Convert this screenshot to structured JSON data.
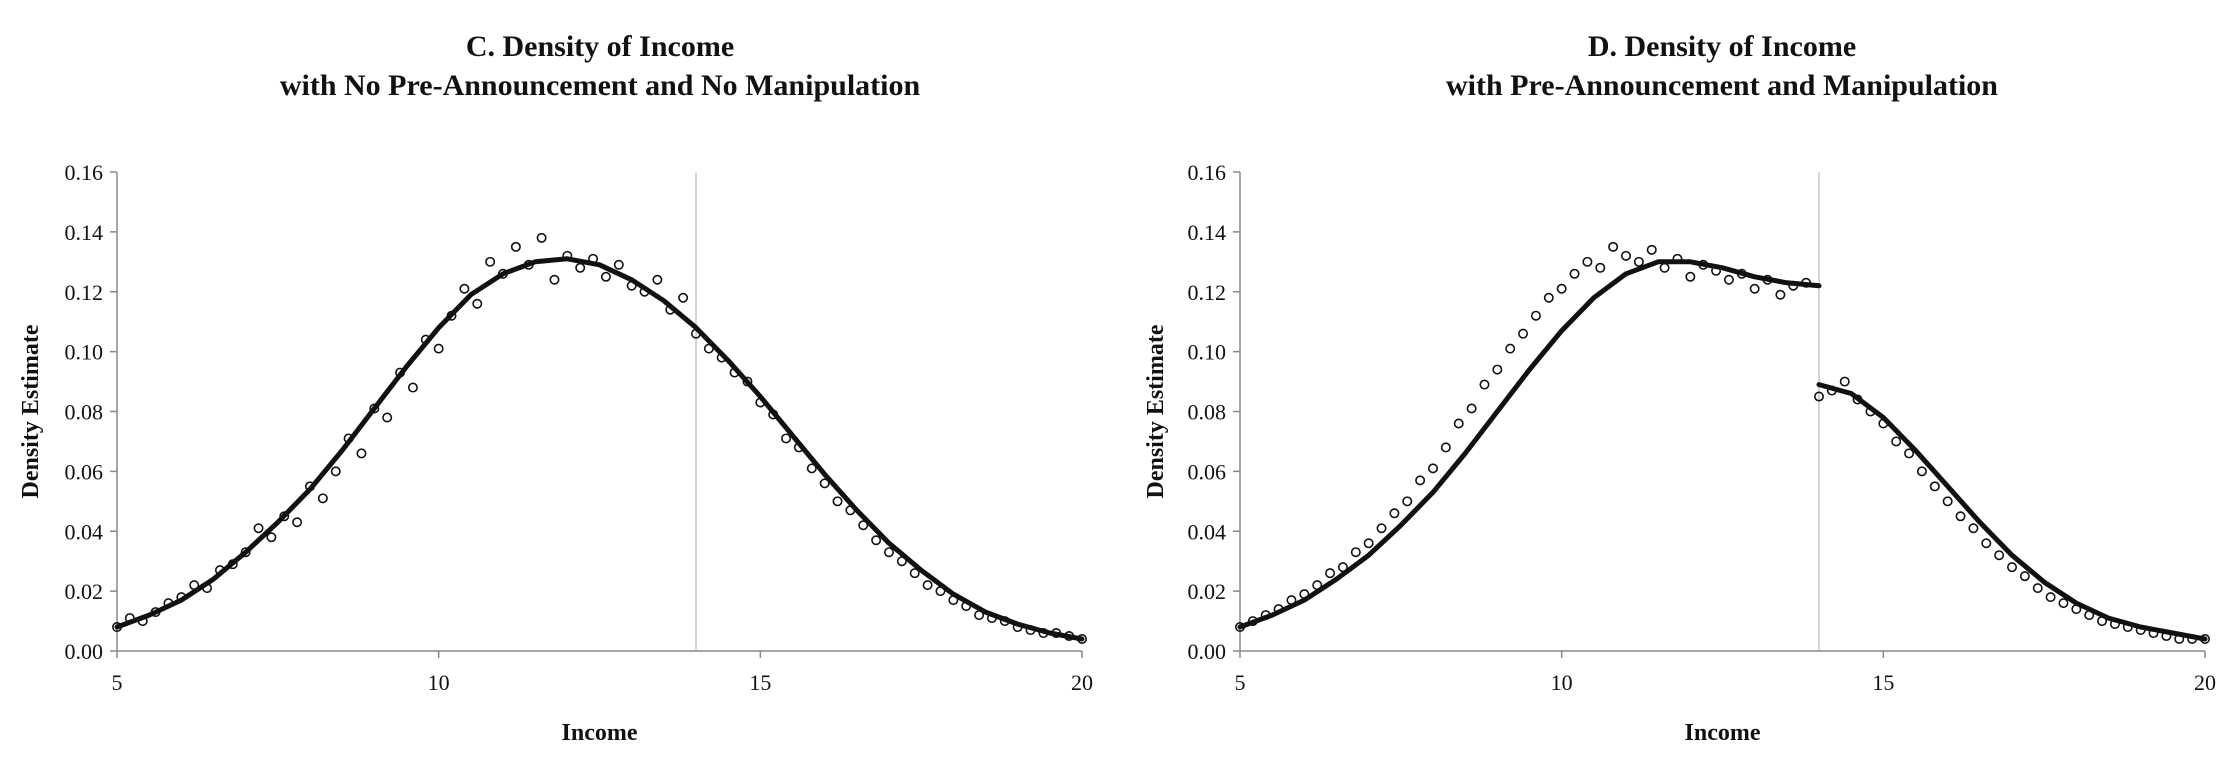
{
  "chart_data": [
    {
      "type": "scatter",
      "title_line1": "C. Density of Income",
      "title_line2": "with No Pre-Announcement and No Manipulation",
      "xlabel": "Income",
      "ylabel": "Density Estimate",
      "xlim": [
        5,
        20
      ],
      "ylim": [
        0,
        0.16
      ],
      "xticks": [
        5,
        10,
        15,
        20
      ],
      "xtick_labels": [
        "5",
        "10",
        "15",
        "20"
      ],
      "yticks": [
        0,
        0.02,
        0.04,
        0.06,
        0.08,
        0.1,
        0.12,
        0.14,
        0.16
      ],
      "ytick_labels": [
        "0.00",
        "0.02",
        "0.04",
        "0.06",
        "0.08",
        "0.10",
        "0.12",
        "0.14",
        "0.16"
      ],
      "cutoff": 14,
      "grid": false,
      "series": [
        {
          "kind": "points",
          "x": [
            5.0,
            5.2,
            5.4,
            5.6,
            5.8,
            6.0,
            6.2,
            6.4,
            6.6,
            6.8,
            7.0,
            7.2,
            7.4,
            7.6,
            7.8,
            8.0,
            8.2,
            8.4,
            8.6,
            8.8,
            9.0,
            9.2,
            9.4,
            9.6,
            9.8,
            10.0,
            10.2,
            10.4,
            10.6,
            10.8,
            11.0,
            11.2,
            11.4,
            11.6,
            11.8,
            12.0,
            12.2,
            12.4,
            12.6,
            12.8,
            13.0,
            13.2,
            13.4,
            13.6,
            13.8,
            14.0,
            14.2,
            14.4,
            14.6,
            14.8,
            15.0,
            15.2,
            15.4,
            15.6,
            15.8,
            16.0,
            16.2,
            16.4,
            16.6,
            16.8,
            17.0,
            17.2,
            17.4,
            17.6,
            17.8,
            18.0,
            18.2,
            18.4,
            18.6,
            18.8,
            19.0,
            19.2,
            19.4,
            19.6,
            19.8,
            20.0
          ],
          "y": [
            0.008,
            0.011,
            0.01,
            0.013,
            0.016,
            0.018,
            0.022,
            0.021,
            0.027,
            0.029,
            0.033,
            0.041,
            0.038,
            0.045,
            0.043,
            0.055,
            0.051,
            0.06,
            0.071,
            0.066,
            0.081,
            0.078,
            0.093,
            0.088,
            0.104,
            0.101,
            0.112,
            0.121,
            0.116,
            0.13,
            0.126,
            0.135,
            0.129,
            0.138,
            0.124,
            0.132,
            0.128,
            0.131,
            0.125,
            0.129,
            0.122,
            0.12,
            0.124,
            0.114,
            0.118,
            0.106,
            0.101,
            0.098,
            0.093,
            0.09,
            0.083,
            0.079,
            0.071,
            0.068,
            0.061,
            0.056,
            0.05,
            0.047,
            0.042,
            0.037,
            0.033,
            0.03,
            0.026,
            0.022,
            0.02,
            0.017,
            0.015,
            0.012,
            0.011,
            0.01,
            0.008,
            0.007,
            0.006,
            0.006,
            0.005,
            0.004
          ]
        },
        {
          "kind": "fit",
          "x": [
            5.0,
            5.5,
            6.0,
            6.5,
            7.0,
            7.5,
            8.0,
            8.5,
            9.0,
            9.5,
            10.0,
            10.5,
            11.0,
            11.5,
            12.0,
            12.5,
            13.0,
            13.5,
            14.0,
            14.5,
            15.0,
            15.5,
            16.0,
            16.5,
            17.0,
            17.5,
            18.0,
            18.5,
            19.0,
            19.5,
            20.0
          ],
          "y": [
            0.008,
            0.012,
            0.017,
            0.024,
            0.033,
            0.043,
            0.054,
            0.067,
            0.081,
            0.095,
            0.108,
            0.119,
            0.126,
            0.13,
            0.131,
            0.129,
            0.124,
            0.117,
            0.108,
            0.097,
            0.085,
            0.072,
            0.059,
            0.047,
            0.036,
            0.027,
            0.019,
            0.013,
            0.009,
            0.006,
            0.004
          ]
        }
      ]
    },
    {
      "type": "scatter",
      "title_line1": "D. Density of Income",
      "title_line2": "with Pre-Announcement and Manipulation",
      "xlabel": "Income",
      "ylabel": "Density Estimate",
      "xlim": [
        5,
        20
      ],
      "ylim": [
        0,
        0.16
      ],
      "xticks": [
        5,
        10,
        15,
        20
      ],
      "xtick_labels": [
        "5",
        "10",
        "15",
        "20"
      ],
      "yticks": [
        0,
        0.02,
        0.04,
        0.06,
        0.08,
        0.1,
        0.12,
        0.14,
        0.16
      ],
      "ytick_labels": [
        "0.00",
        "0.02",
        "0.04",
        "0.06",
        "0.08",
        "0.10",
        "0.12",
        "0.14",
        "0.16"
      ],
      "cutoff": 14,
      "grid": false,
      "series": [
        {
          "kind": "points",
          "x": [
            5.0,
            5.2,
            5.4,
            5.6,
            5.8,
            6.0,
            6.2,
            6.4,
            6.6,
            6.8,
            7.0,
            7.2,
            7.4,
            7.6,
            7.8,
            8.0,
            8.2,
            8.4,
            8.6,
            8.8,
            9.0,
            9.2,
            9.4,
            9.6,
            9.8,
            10.0,
            10.2,
            10.4,
            10.6,
            10.8,
            11.0,
            11.2,
            11.4,
            11.6,
            11.8,
            12.0,
            12.2,
            12.4,
            12.6,
            12.8,
            13.0,
            13.2,
            13.4,
            13.6,
            13.8,
            14.0,
            14.2,
            14.4,
            14.6,
            14.8,
            15.0,
            15.2,
            15.4,
            15.6,
            15.8,
            16.0,
            16.2,
            16.4,
            16.6,
            16.8,
            17.0,
            17.2,
            17.4,
            17.6,
            17.8,
            18.0,
            18.2,
            18.4,
            18.6,
            18.8,
            19.0,
            19.2,
            19.4,
            19.6,
            19.8,
            20.0
          ],
          "y": [
            0.008,
            0.01,
            0.012,
            0.014,
            0.017,
            0.019,
            0.022,
            0.026,
            0.028,
            0.033,
            0.036,
            0.041,
            0.046,
            0.05,
            0.057,
            0.061,
            0.068,
            0.076,
            0.081,
            0.089,
            0.094,
            0.101,
            0.106,
            0.112,
            0.118,
            0.121,
            0.126,
            0.13,
            0.128,
            0.135,
            0.132,
            0.13,
            0.134,
            0.128,
            0.131,
            0.125,
            0.129,
            0.127,
            0.124,
            0.126,
            0.121,
            0.124,
            0.119,
            0.122,
            0.123,
            0.085,
            0.087,
            0.09,
            0.084,
            0.08,
            0.076,
            0.07,
            0.066,
            0.06,
            0.055,
            0.05,
            0.045,
            0.041,
            0.036,
            0.032,
            0.028,
            0.025,
            0.021,
            0.018,
            0.016,
            0.014,
            0.012,
            0.01,
            0.009,
            0.008,
            0.007,
            0.006,
            0.005,
            0.004,
            0.004,
            0.004
          ]
        },
        {
          "kind": "fit",
          "x": [
            5.0,
            5.5,
            6.0,
            6.5,
            7.0,
            7.5,
            8.0,
            8.5,
            9.0,
            9.5,
            10.0,
            10.5,
            11.0,
            11.5,
            12.0,
            12.5,
            13.0,
            13.5,
            14.0
          ],
          "y": [
            0.008,
            0.012,
            0.017,
            0.024,
            0.032,
            0.042,
            0.053,
            0.066,
            0.08,
            0.094,
            0.107,
            0.118,
            0.126,
            0.13,
            0.13,
            0.128,
            0.125,
            0.123,
            0.122
          ]
        },
        {
          "kind": "fit",
          "x": [
            14.0,
            14.5,
            15.0,
            15.5,
            16.0,
            16.5,
            17.0,
            17.5,
            18.0,
            18.5,
            19.0,
            19.5,
            20.0
          ],
          "y": [
            0.089,
            0.086,
            0.078,
            0.067,
            0.055,
            0.043,
            0.032,
            0.023,
            0.016,
            0.011,
            0.008,
            0.006,
            0.004
          ]
        }
      ]
    }
  ]
}
